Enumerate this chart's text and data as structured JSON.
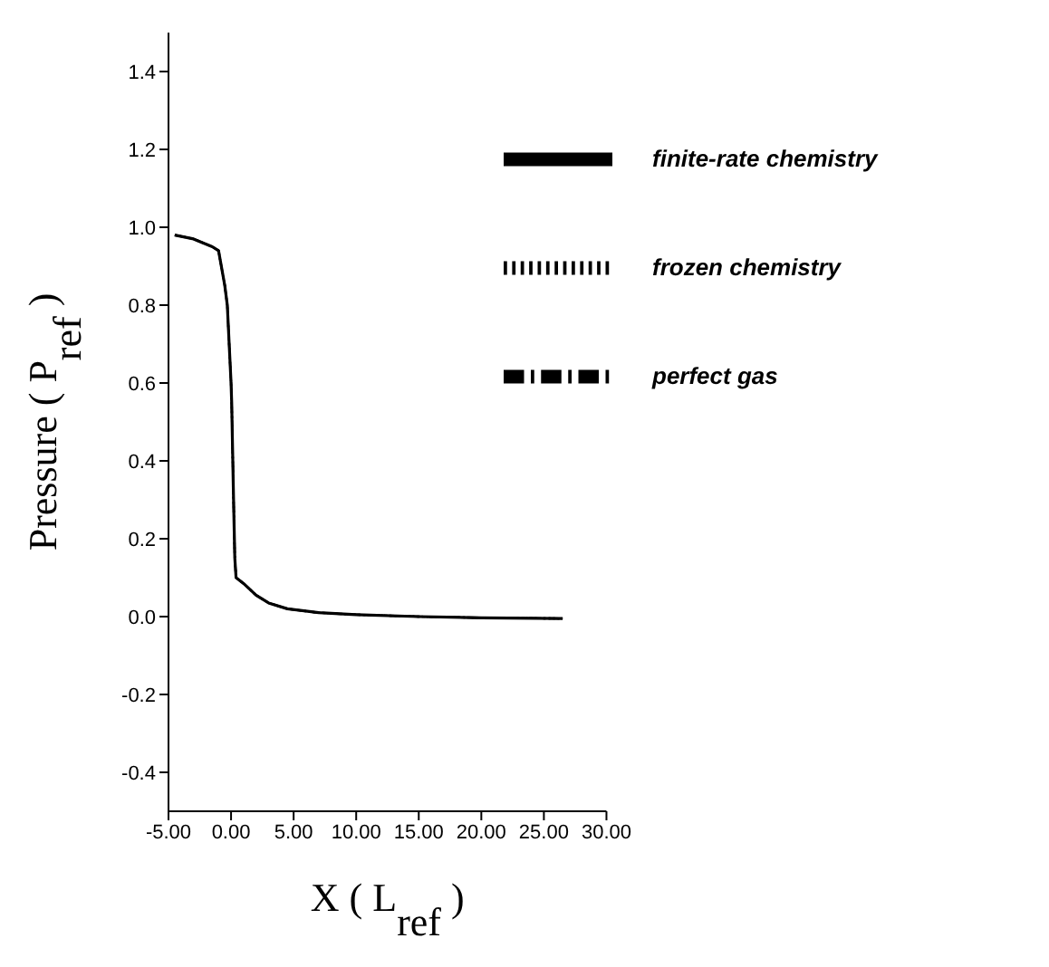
{
  "chart_data": {
    "type": "line",
    "xlabel": "X ( L$_{ref}$ )",
    "ylabel": "Pressure ( P$_{ref}$ )",
    "x": [
      -4.5,
      -3,
      -1.5,
      -1,
      -0.5,
      -0.3,
      0,
      0.05,
      0.2,
      0.3,
      0.4,
      1,
      2,
      3,
      4.5,
      7,
      10,
      15,
      20,
      26.5
    ],
    "series": [
      {
        "name": "finite-rate chemistry",
        "color": "#000000",
        "line_style": "solid",
        "values": [
          0.98,
          0.97,
          0.95,
          0.94,
          0.85,
          0.8,
          0.6,
          0.55,
          0.3,
          0.15,
          0.1,
          0.085,
          0.055,
          0.035,
          0.02,
          0.01,
          0.005,
          0.0,
          -0.003,
          -0.005
        ]
      },
      {
        "name": "frozen chemistry",
        "color": "#000000",
        "line_style": "dotted",
        "values": [
          0.98,
          0.97,
          0.95,
          0.94,
          0.85,
          0.8,
          0.6,
          0.55,
          0.3,
          0.15,
          0.1,
          0.085,
          0.055,
          0.035,
          0.02,
          0.01,
          0.005,
          0.0,
          -0.003,
          -0.005
        ]
      },
      {
        "name": "perfect gas",
        "color": "#000000",
        "line_style": "dashdot",
        "values": [
          0.98,
          0.97,
          0.95,
          0.94,
          0.85,
          0.8,
          0.6,
          0.55,
          0.3,
          0.15,
          0.1,
          0.085,
          0.055,
          0.035,
          0.02,
          0.01,
          0.005,
          0.0,
          -0.003,
          -0.005
        ]
      }
    ],
    "xlim": [
      -5,
      30
    ],
    "xticks": [
      {
        "value": -5,
        "label": "-5.00"
      },
      {
        "value": 0,
        "label": "0.00"
      },
      {
        "value": 5,
        "label": "5.00"
      },
      {
        "value": 10,
        "label": "10.00"
      },
      {
        "value": 15,
        "label": "15.00"
      },
      {
        "value": 20,
        "label": "20.00"
      },
      {
        "value": 25,
        "label": "25.00"
      },
      {
        "value": 30,
        "label": "30.00"
      }
    ],
    "ylim": [
      -0.5,
      1.5
    ],
    "yticks": [
      -0.4,
      -0.2,
      {
        "value": 0,
        "label": "0.0"
      },
      0.2,
      0.4,
      0.6,
      0.8,
      {
        "value": 1,
        "label": "1.0"
      },
      1.2,
      1.4
    ],
    "grid": false,
    "legend": "top right",
    "marker": "none"
  }
}
